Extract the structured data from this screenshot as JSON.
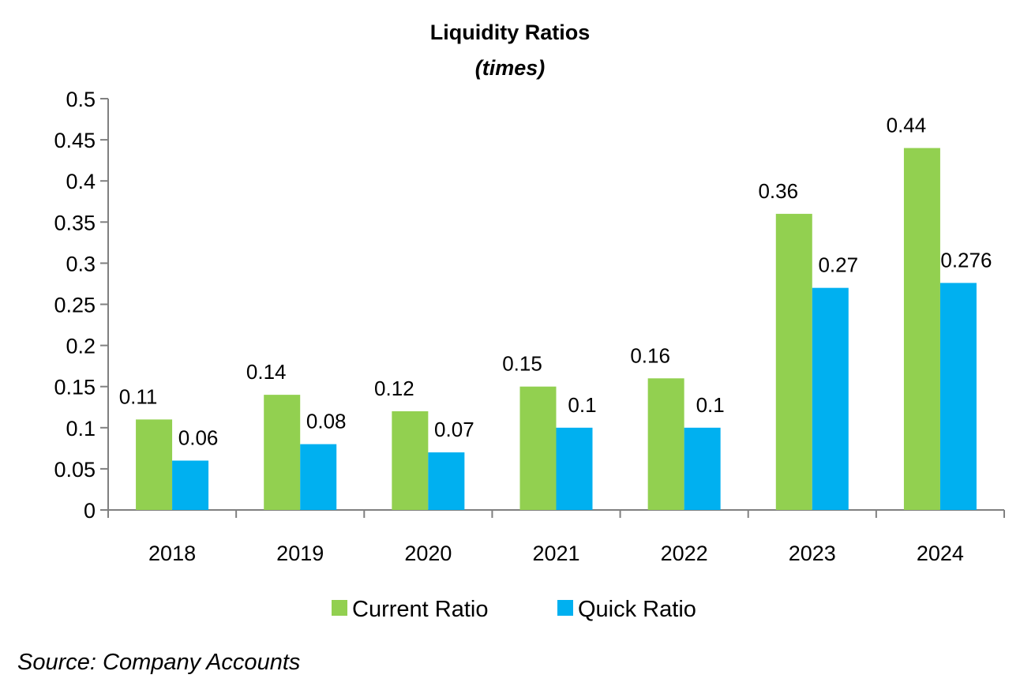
{
  "chart_data": {
    "type": "bar",
    "title": "Liquidity Ratios",
    "subtitle": "(times)",
    "categories": [
      "2018",
      "2019",
      "2020",
      "2021",
      "2022",
      "2023",
      "2024"
    ],
    "series": [
      {
        "name": "Current Ratio",
        "color": "#92D050",
        "values": [
          0.11,
          0.14,
          0.12,
          0.15,
          0.16,
          0.36,
          0.44
        ],
        "labels": [
          "0.11",
          "0.14",
          "0.12",
          "0.15",
          "0.16",
          "0.36",
          "0.44"
        ]
      },
      {
        "name": "Quick Ratio",
        "color": "#00B0F0",
        "values": [
          0.06,
          0.08,
          0.07,
          0.1,
          0.1,
          0.27,
          0.276
        ],
        "labels": [
          "0.06",
          "0.08",
          "0.07",
          "0.1",
          "0.1",
          "0.27",
          "0.276"
        ]
      }
    ],
    "yticks": [
      "0",
      "0.05",
      "0.1",
      "0.15",
      "0.2",
      "0.25",
      "0.3",
      "0.35",
      "0.4",
      "0.45",
      "0.5"
    ],
    "ylim": [
      0,
      0.5
    ],
    "grid": false,
    "legend": "bottom-center"
  },
  "source_note": "Source: Company Accounts"
}
